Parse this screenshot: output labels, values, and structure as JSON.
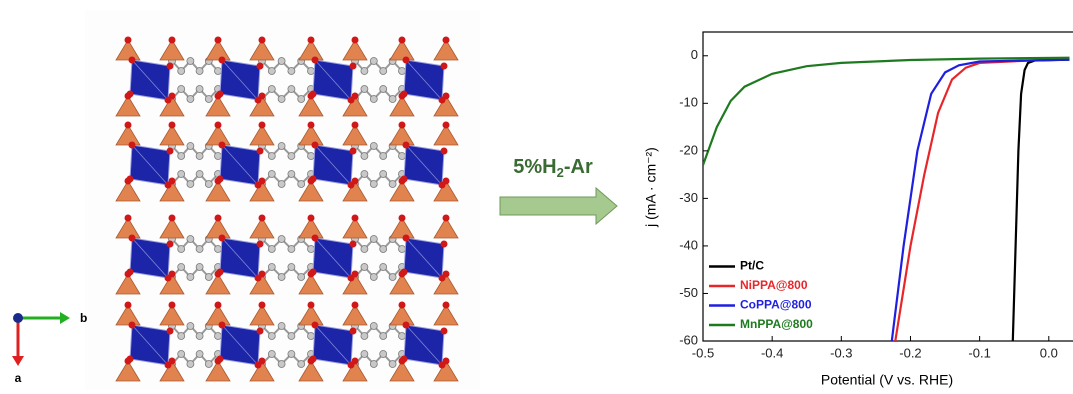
{
  "structure": {
    "axis_labels": [
      "b",
      "a"
    ]
  },
  "arrow_label": {
    "main": "5%H",
    "subscript": "2",
    "rest": "-Ar"
  },
  "chart_data": {
    "type": "line",
    "xlabel": "Potential (V vs. RHE)",
    "ylabel": "j (mA · cm⁻²)",
    "xlim": [
      -0.5,
      0.035
    ],
    "ylim": [
      -60,
      5
    ],
    "xticks": [
      -0.5,
      -0.4,
      -0.3,
      -0.2,
      -0.1,
      {
        "value": 0,
        "label": "0.0"
      }
    ],
    "yticks": [
      0,
      -10,
      -20,
      -30,
      -40,
      -50,
      -60
    ],
    "legend": "lower left",
    "series": [
      {
        "name": "Pt/C",
        "color": "#000000",
        "x": [
          -0.052,
          -0.048,
          -0.044,
          -0.04,
          -0.035,
          -0.03,
          -0.02,
          0.03
        ],
        "values": [
          -60,
          -40,
          -20,
          -8,
          -3,
          -1.5,
          -1,
          -0.8
        ]
      },
      {
        "name": "NiPPA@800",
        "color": "#e8262a",
        "x": [
          -0.222,
          -0.2,
          -0.18,
          -0.16,
          -0.14,
          -0.12,
          -0.1,
          0,
          0.03
        ],
        "values": [
          -60,
          -40,
          -25,
          -12,
          -5,
          -2.5,
          -1.5,
          -0.8,
          -0.7
        ]
      },
      {
        "name": "CoPPA@800",
        "color": "#1f1fe0",
        "x": [
          -0.227,
          -0.21,
          -0.19,
          -0.17,
          -0.15,
          -0.13,
          -0.1,
          0.03
        ],
        "values": [
          -60,
          -40,
          -20,
          -8,
          -3.5,
          -2,
          -1.2,
          -0.8
        ]
      },
      {
        "name": "MnPPA@800",
        "color": "#1f7a1f",
        "x": [
          -0.5,
          -0.48,
          -0.46,
          -0.44,
          -0.4,
          -0.35,
          -0.3,
          -0.2,
          -0.1,
          0.03
        ],
        "values": [
          -23,
          -15,
          -9.5,
          -6.5,
          -3.8,
          -2.2,
          -1.5,
          -0.9,
          -0.6,
          -0.4
        ]
      }
    ]
  }
}
